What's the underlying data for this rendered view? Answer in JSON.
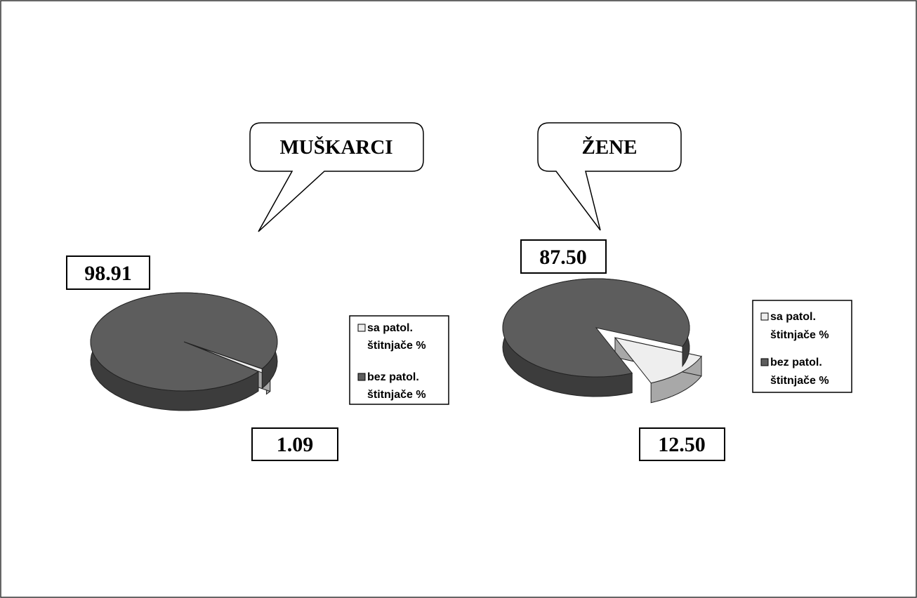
{
  "colors": {
    "with_pathology": "#eeeeee",
    "without_pathology": "#5d5d5d",
    "without_pathology_side": "#3c3c3c",
    "with_pathology_side": "#a8a8a8"
  },
  "chart_data": [
    {
      "type": "pie",
      "title": "MUŠKARCI",
      "legend_position": "right",
      "slices": [
        {
          "key": "sa",
          "label": "sa patol. štitnjače %",
          "value": 1.09,
          "display": "1.09"
        },
        {
          "key": "bez",
          "label": "bez patol. štitnjače %",
          "value": 98.91,
          "display": "98.91"
        }
      ],
      "legend": [
        {
          "line1": "sa patol.",
          "line2": "štitnjače %"
        },
        {
          "line1": "bez patol.",
          "line2": "štitnjače %"
        }
      ]
    },
    {
      "type": "pie",
      "title": "ŽENE",
      "legend_position": "right",
      "slices": [
        {
          "key": "sa",
          "label": "sa patol. štitnjače %",
          "value": 12.5,
          "display": "12.50"
        },
        {
          "key": "bez",
          "label": "bez patol. štitnjače %",
          "value": 87.5,
          "display": "87.50"
        }
      ],
      "legend": [
        {
          "line1": "sa patol.",
          "line2": "štitnjače %"
        },
        {
          "line1": "bez patol.",
          "line2": "štitnjače %"
        }
      ]
    }
  ]
}
